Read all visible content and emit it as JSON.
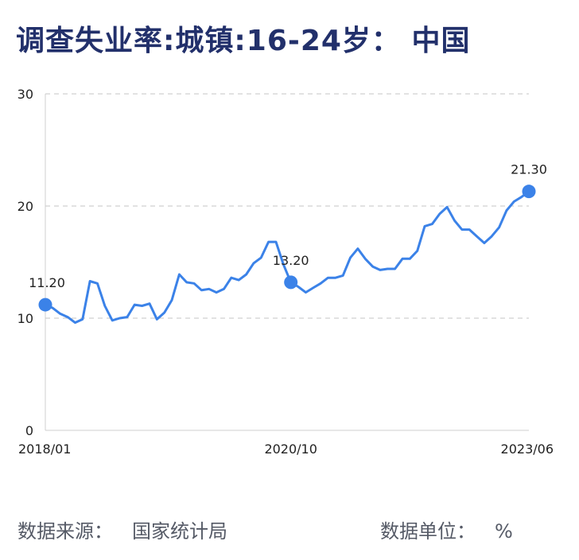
{
  "chart_data": {
    "type": "line",
    "title": "调查失业率:城镇:16-24岁： 中国",
    "ylim": [
      0,
      30
    ],
    "yticks": [
      0,
      10,
      20,
      30
    ],
    "xtick_labels": [
      "2018/01",
      "2020/10",
      "2023/06"
    ],
    "grid": "horizontal-dashed",
    "line_color": "#3b82e8",
    "start": "2018/01",
    "end": "2023/06",
    "series": [
      {
        "values": [
          11.2,
          10.9,
          10.4,
          10.1,
          9.6,
          9.9,
          13.3,
          13.1,
          11.1,
          9.8,
          10.0,
          10.1,
          11.2,
          11.1,
          11.3,
          9.9,
          10.5,
          11.6,
          13.9,
          13.2,
          13.1,
          12.5,
          12.6,
          12.3,
          12.6,
          13.6,
          13.4,
          13.9,
          14.9,
          15.4,
          16.8,
          16.8,
          14.8,
          13.2,
          12.8,
          12.3,
          12.7,
          13.1,
          13.6,
          13.6,
          13.8,
          15.4,
          16.2,
          15.3,
          14.6,
          14.3,
          14.4,
          14.4,
          15.3,
          15.3,
          16.0,
          18.2,
          18.4,
          19.3,
          19.9,
          18.7,
          17.9,
          17.9,
          17.3,
          16.7,
          17.3,
          18.1,
          19.6,
          20.4,
          20.8,
          21.3
        ]
      }
    ],
    "highlight_points": [
      {
        "date": "2018/01",
        "value": 11.2,
        "label": "11.20"
      },
      {
        "date": "2020/10",
        "value": 13.2,
        "label": "13.20"
      },
      {
        "date": "2023/06",
        "value": 21.3,
        "label": "21.30"
      }
    ]
  },
  "footer": {
    "source_label": "数据来源：",
    "source_value": "国家统计局",
    "unit_label": "数据单位：",
    "unit_value": "%"
  }
}
